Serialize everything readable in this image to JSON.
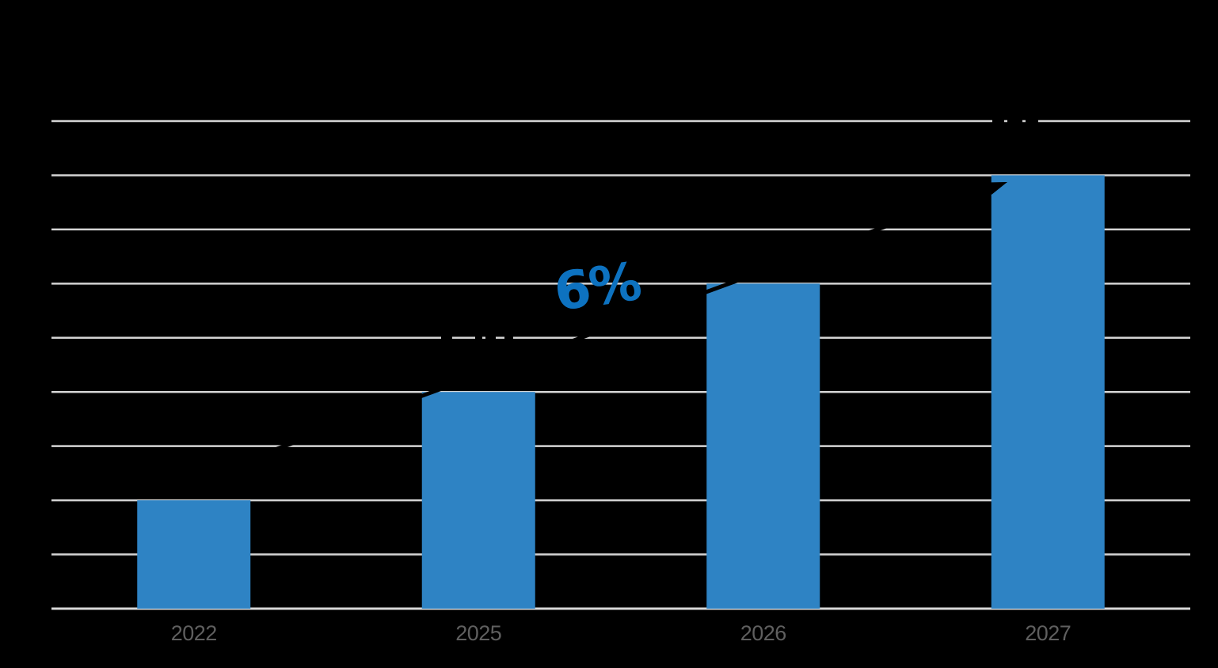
{
  "chart_data": {
    "type": "bar",
    "title": "",
    "xlabel": "",
    "ylabel": "",
    "categories": [
      "2022",
      "2025",
      "2026",
      "2027"
    ],
    "values": [
      2,
      4,
      6,
      8
    ],
    "value_basis": "relative heights read from gridlines; numeric data labels not legible in image",
    "ylim": [
      0,
      9
    ],
    "gridline_interval": 1,
    "gridlines": true,
    "legend": "none",
    "annotation": {
      "text": "6%",
      "color": "#0D72C0"
    },
    "trend_arrow": "black arrow rising from above the 2022 bar to the top-left corner of the 2027 bar",
    "colors": {
      "bar": "#2E83C4",
      "gridline": "#D4D4D4",
      "axis_line": "#D8D8D8",
      "tick_label": "#5F5F5F",
      "background": "#000000",
      "arrow": "#000000"
    }
  }
}
